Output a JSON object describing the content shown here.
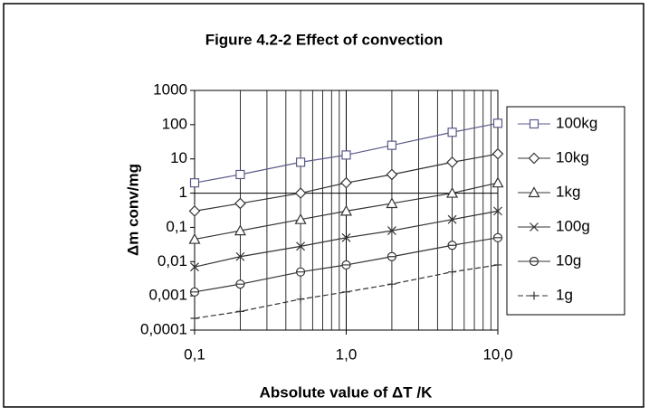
{
  "chart_data": {
    "type": "line",
    "title": "Figure 4.2-2  Effect of convection",
    "x_label": "Absolute value of ΔT /K",
    "y_label": "Δm conv/mg",
    "log_x": true,
    "log_y": true,
    "x": [
      0.1,
      0.2,
      0.5,
      1,
      2,
      5,
      10
    ],
    "xlim": [
      0.1,
      10
    ],
    "ylim": [
      0.0001,
      1000
    ],
    "xticks": [
      {
        "value": 0.1,
        "label": "0,1"
      },
      {
        "value": 1,
        "label": "1,0"
      },
      {
        "value": 10,
        "label": "10,0"
      }
    ],
    "x_minor_ticks": [
      0.2,
      0.3,
      0.4,
      0.5,
      0.6,
      0.7,
      0.8,
      0.9,
      2,
      3,
      4,
      5,
      6,
      7,
      8,
      9
    ],
    "yticks": [
      {
        "value": 0.0001,
        "label": "0,0001"
      },
      {
        "value": 0.001,
        "label": "0,001"
      },
      {
        "value": 0.01,
        "label": "0,01"
      },
      {
        "value": 0.1,
        "label": "0,1"
      },
      1,
      10,
      100,
      1000
    ],
    "reference_line": 1,
    "legend": "right",
    "series": [
      {
        "name": "100kg",
        "color": "#5a5a8a",
        "marker": "square",
        "values": [
          2,
          3.5,
          8,
          13,
          25,
          60,
          110
        ]
      },
      {
        "name": "10kg",
        "color": "#333333",
        "marker": "diamond",
        "values": [
          0.3,
          0.5,
          1,
          2,
          3.5,
          8,
          14
        ]
      },
      {
        "name": "1kg",
        "color": "#333333",
        "marker": "triangle",
        "values": [
          0.045,
          0.08,
          0.17,
          0.3,
          0.5,
          1,
          2
        ]
      },
      {
        "name": "100g",
        "color": "#333333",
        "marker": "x",
        "values": [
          0.007,
          0.014,
          0.028,
          0.05,
          0.08,
          0.17,
          0.3
        ]
      },
      {
        "name": "10g",
        "color": "#333333",
        "marker": "circle",
        "values": [
          0.0013,
          0.0022,
          0.005,
          0.008,
          0.014,
          0.03,
          0.05
        ]
      },
      {
        "name": "1g",
        "color": "#333333",
        "marker": "plus",
        "dashed": true,
        "values": [
          0.00022,
          0.00035,
          0.0008,
          0.0013,
          0.0022,
          0.005,
          0.008
        ]
      }
    ]
  }
}
